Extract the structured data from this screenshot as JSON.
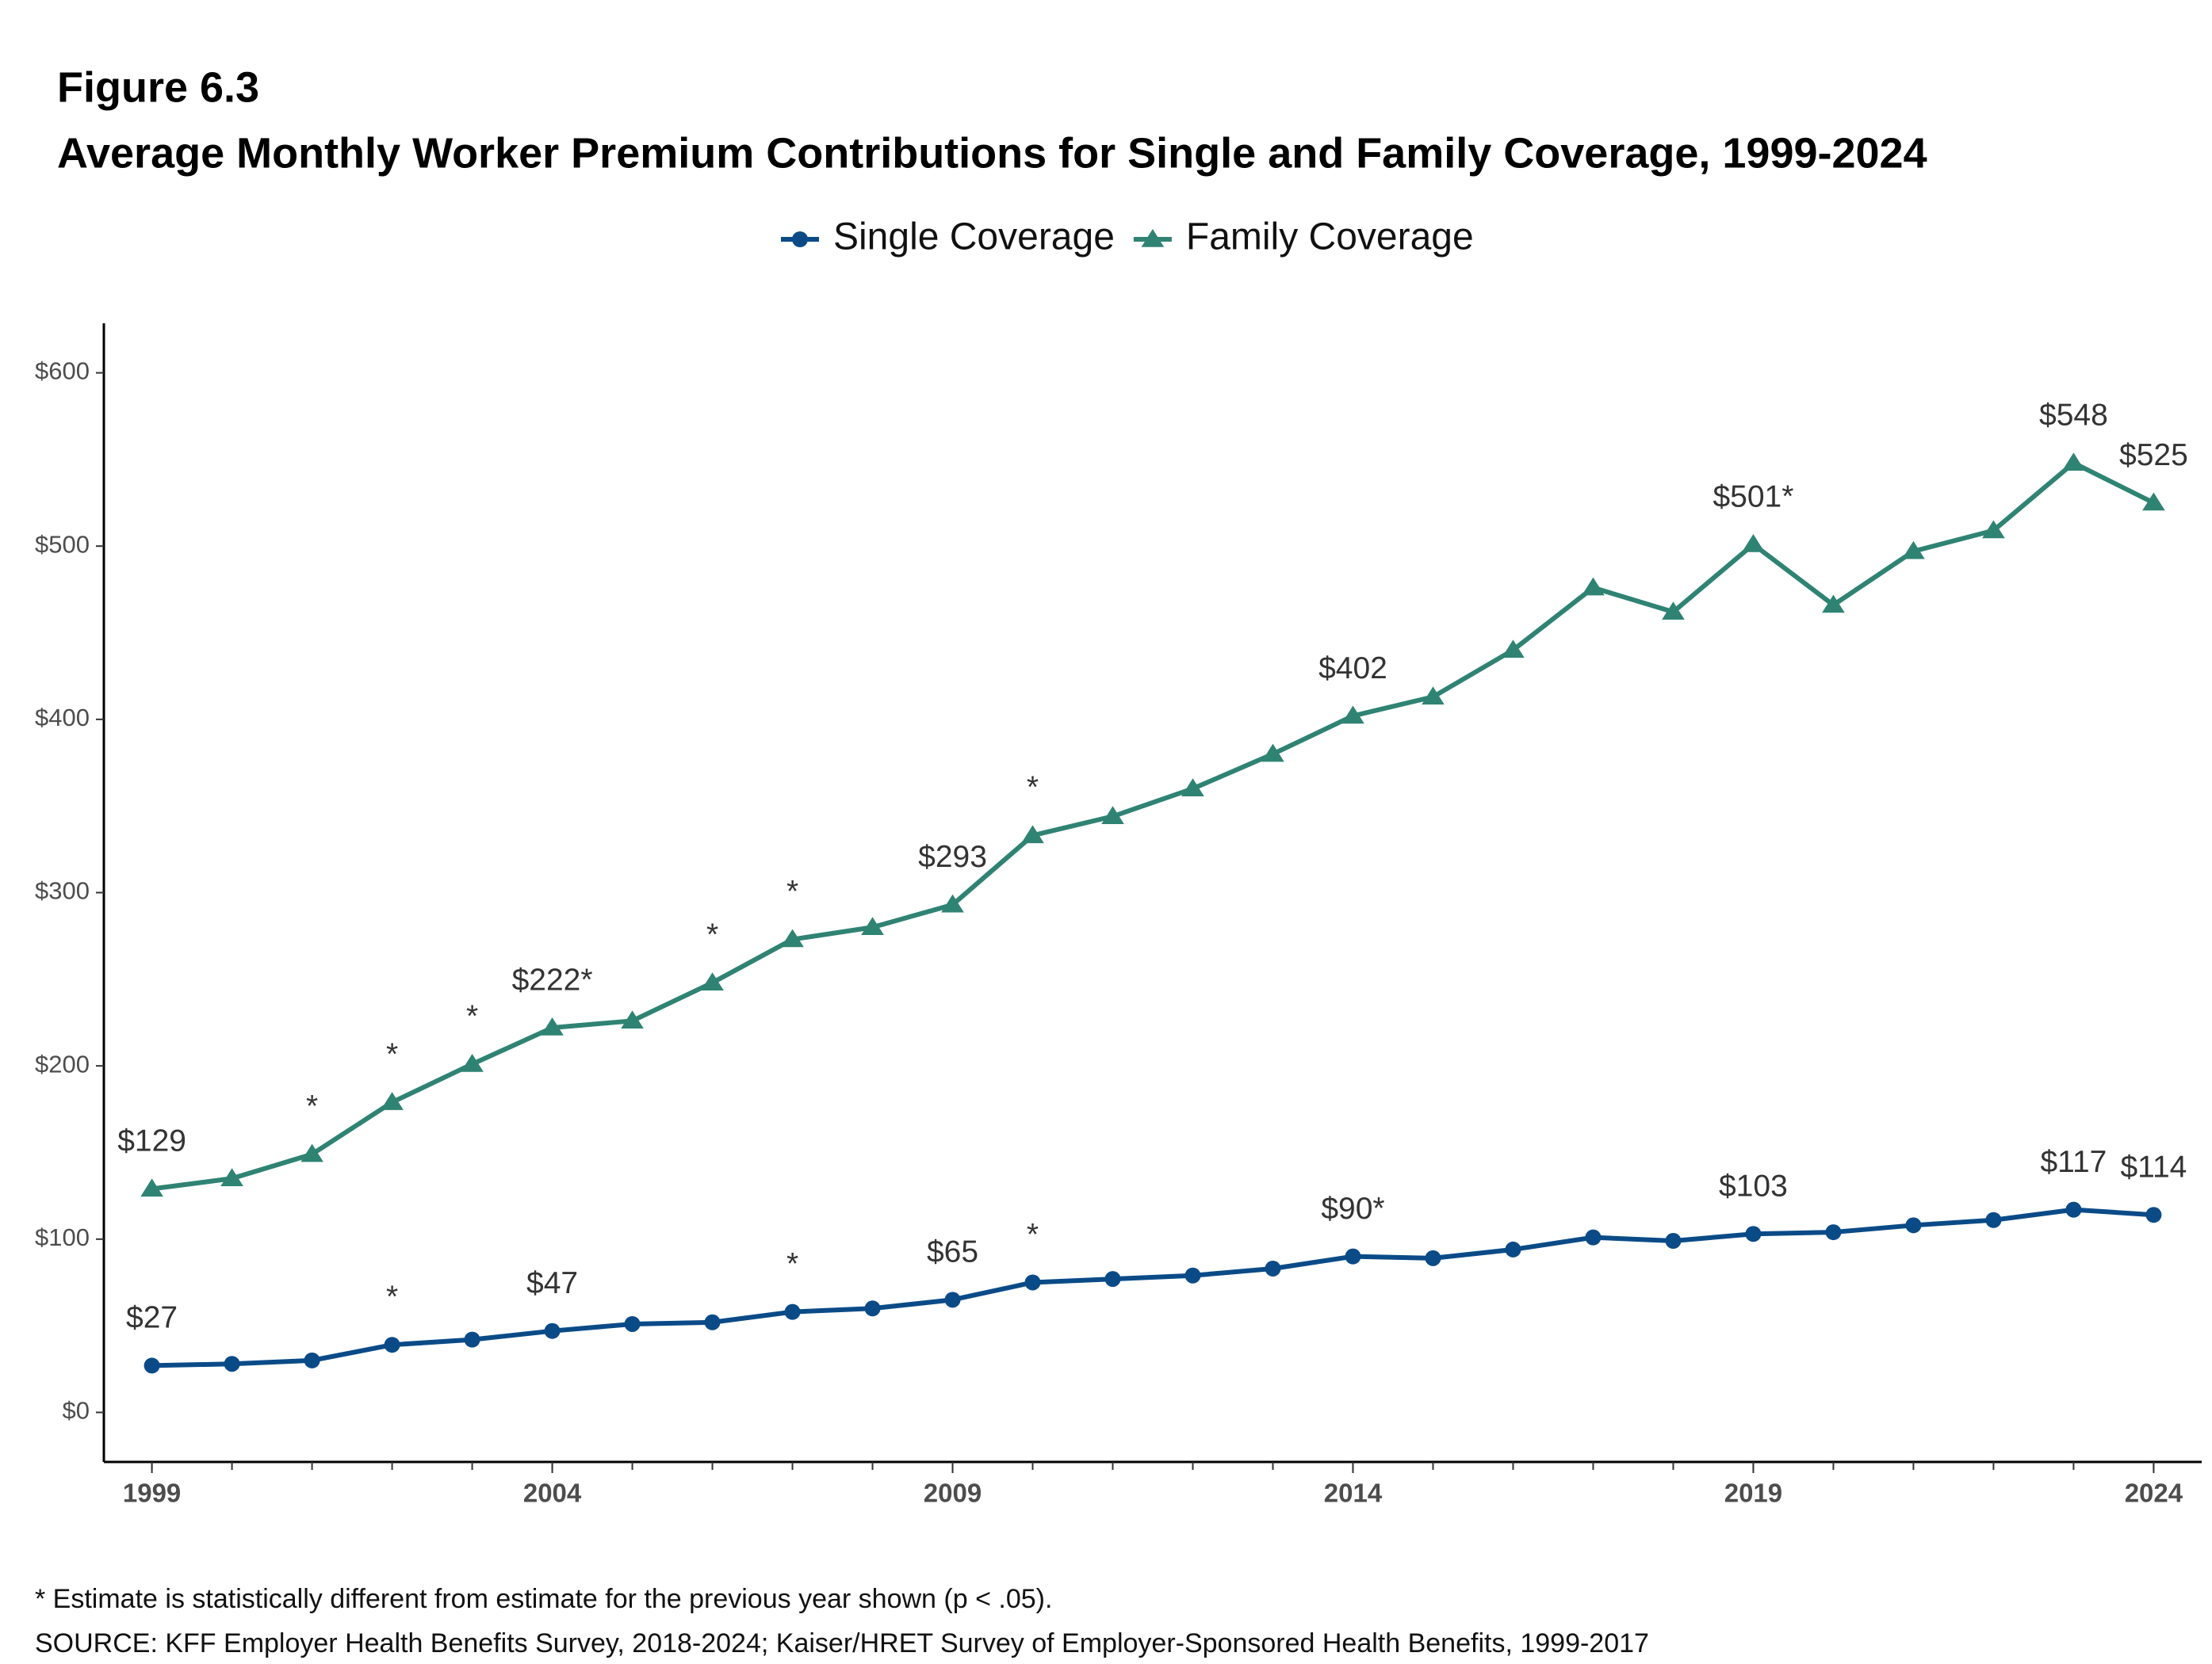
{
  "chart_data": {
    "type": "line",
    "title": "Figure 6.3",
    "subtitle": "Average Monthly Worker Premium Contributions for Single and Family Coverage, 1999-2024",
    "x": [
      1999,
      2000,
      2001,
      2002,
      2003,
      2004,
      2005,
      2006,
      2007,
      2008,
      2009,
      2010,
      2011,
      2012,
      2013,
      2014,
      2015,
      2016,
      2017,
      2018,
      2019,
      2020,
      2021,
      2022,
      2023,
      2024
    ],
    "series": [
      {
        "name": "Single Coverage",
        "color": "#0a4b87",
        "marker": "circle",
        "values": [
          27,
          28,
          30,
          39,
          42,
          47,
          51,
          52,
          58,
          60,
          65,
          75,
          77,
          79,
          83,
          90,
          89,
          94,
          101,
          99,
          103,
          104,
          108,
          111,
          117,
          114
        ],
        "value_labels": [
          "$27",
          null,
          null,
          "*",
          null,
          "$47",
          null,
          null,
          "*",
          null,
          "$65",
          "*",
          null,
          null,
          null,
          "$90*",
          null,
          null,
          null,
          null,
          "$103",
          null,
          null,
          null,
          "$117",
          "$114"
        ]
      },
      {
        "name": "Family Coverage",
        "color": "#2f8373",
        "marker": "triangle",
        "values": [
          129,
          135,
          149,
          179,
          201,
          222,
          226,
          248,
          273,
          280,
          293,
          333,
          344,
          360,
          380,
          402,
          413,
          440,
          476,
          462,
          501,
          466,
          497,
          509,
          548,
          525
        ],
        "value_labels": [
          "$129",
          null,
          "*",
          "*",
          "*",
          "$222*",
          null,
          "*",
          "*",
          null,
          "$293",
          "*",
          null,
          null,
          null,
          "$402",
          null,
          null,
          null,
          null,
          "$501*",
          null,
          null,
          null,
          "$548",
          "$525"
        ]
      }
    ],
    "xlim": [
      1998.4,
      2024.6
    ],
    "xticks": [
      1999,
      2004,
      2009,
      2014,
      2019,
      2024
    ],
    "ylim": [
      -28.6,
      628.6
    ],
    "yticks": [
      {
        "value": 0,
        "label": "$0"
      },
      {
        "value": 100,
        "label": "$100"
      },
      {
        "value": 200,
        "label": "$200"
      },
      {
        "value": 300,
        "label": "$300"
      },
      {
        "value": 400,
        "label": "$400"
      },
      {
        "value": 500,
        "label": "$500"
      },
      {
        "value": 600,
        "label": "$600"
      }
    ],
    "legend": "top",
    "grid": false,
    "notes": [
      "* Estimate is statistically different from estimate for the previous year shown (p < .05).",
      "SOURCE: KFF Employer Health Benefits Survey, 2018-2024; Kaiser/HRET Survey of Employer-Sponsored Health Benefits, 1999-2017"
    ]
  }
}
